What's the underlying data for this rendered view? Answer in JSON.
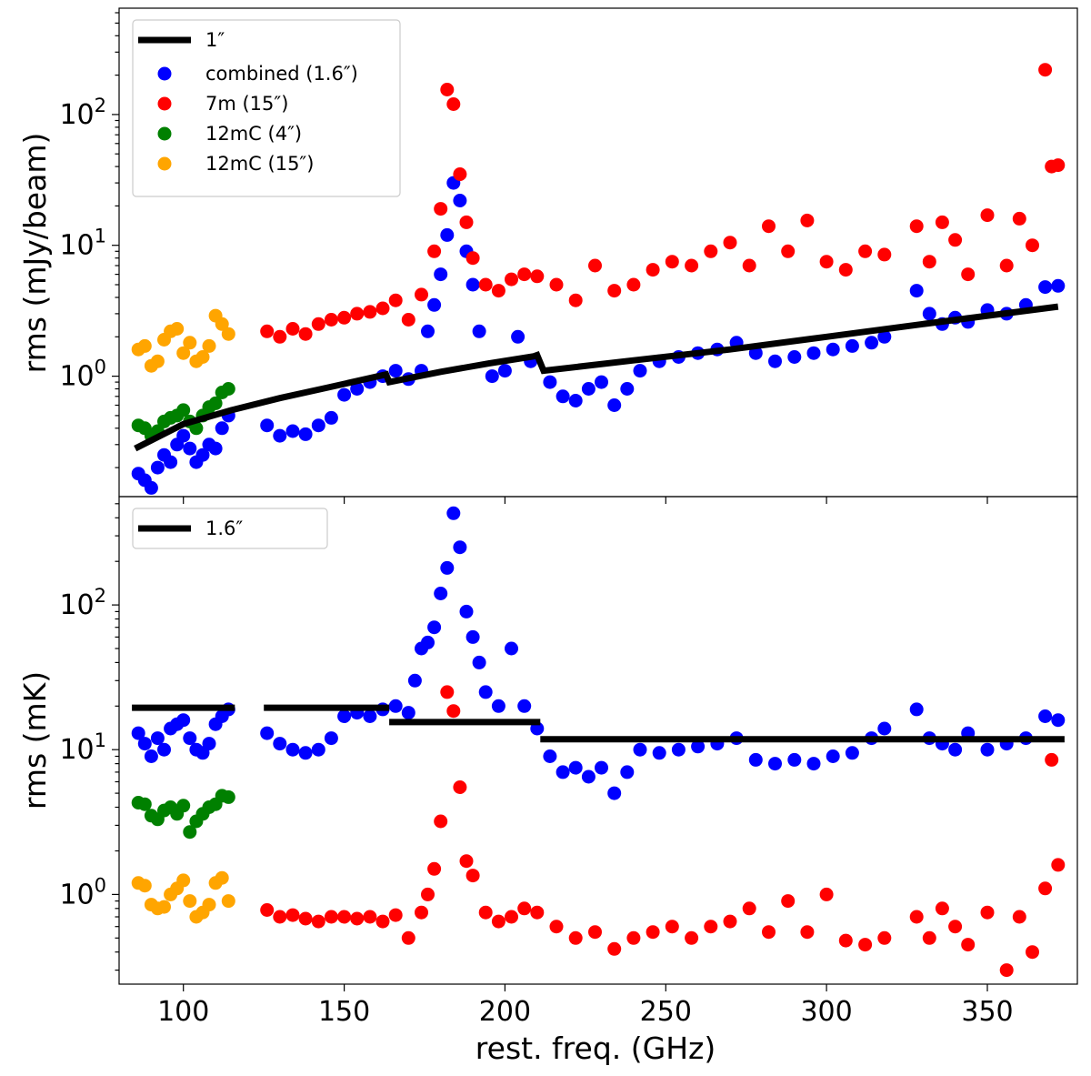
{
  "chart_data": [
    {
      "type": "scatter",
      "panel": "top",
      "ylabel": "rms (mJy/beam)",
      "xlabel": "",
      "yscale": "log",
      "xlim": [
        80,
        378
      ],
      "ylim": [
        0.12,
        650
      ],
      "y_ticks": [
        {
          "value": 1,
          "mantissa": "10",
          "exp": "0"
        },
        {
          "value": 10,
          "mantissa": "10",
          "exp": "1"
        },
        {
          "value": 100,
          "mantissa": "10",
          "exp": "2"
        }
      ],
      "legend_position": "top-left",
      "line": {
        "name": "1″",
        "color": "#000000",
        "x": [
          85,
          100,
          115,
          130,
          145,
          155,
          163,
          164,
          180,
          195,
          209,
          210,
          212,
          240,
          270,
          300,
          330,
          355,
          372
        ],
        "y": [
          0.28,
          0.43,
          0.55,
          0.68,
          0.82,
          0.93,
          1.03,
          0.9,
          1.08,
          1.25,
          1.42,
          1.45,
          1.1,
          1.32,
          1.6,
          2.0,
          2.5,
          3.0,
          3.4
        ]
      },
      "series": [
        {
          "name": "combined (1.6″)",
          "color": "#0000ff",
          "x": [
            86,
            88,
            90,
            92,
            94,
            96,
            98,
            100,
            102,
            104,
            106,
            108,
            110,
            112,
            114,
            126,
            130,
            134,
            138,
            142,
            146,
            150,
            154,
            158,
            162,
            166,
            170,
            174,
            176,
            178,
            180,
            182,
            184,
            186,
            188,
            190,
            192,
            196,
            200,
            204,
            208,
            214,
            218,
            222,
            226,
            230,
            234,
            238,
            242,
            248,
            254,
            260,
            266,
            272,
            278,
            284,
            290,
            296,
            302,
            308,
            314,
            318,
            328,
            332,
            336,
            340,
            344,
            350,
            356,
            362,
            368,
            372
          ],
          "y": [
            0.18,
            0.16,
            0.14,
            0.2,
            0.25,
            0.22,
            0.3,
            0.35,
            0.28,
            0.22,
            0.25,
            0.3,
            0.28,
            0.4,
            0.5,
            0.42,
            0.35,
            0.38,
            0.36,
            0.42,
            0.48,
            0.72,
            0.8,
            0.9,
            1.0,
            1.1,
            0.95,
            1.1,
            2.2,
            3.5,
            6.0,
            12.0,
            30.0,
            22.0,
            9.0,
            5.0,
            2.2,
            1.0,
            1.1,
            2.0,
            1.3,
            0.9,
            0.7,
            0.65,
            0.8,
            0.9,
            0.6,
            0.8,
            1.1,
            1.3,
            1.4,
            1.5,
            1.6,
            1.8,
            1.5,
            1.3,
            1.4,
            1.5,
            1.6,
            1.7,
            1.8,
            2.0,
            4.5,
            3.0,
            2.5,
            2.8,
            2.6,
            3.2,
            3.0,
            3.5,
            4.8,
            4.9
          ]
        },
        {
          "name": "7m (15″)",
          "color": "#ff0000",
          "x": [
            126,
            130,
            134,
            138,
            142,
            146,
            150,
            154,
            158,
            162,
            166,
            170,
            174,
            178,
            180,
            182,
            184,
            186,
            188,
            190,
            194,
            198,
            202,
            206,
            210,
            216,
            222,
            228,
            234,
            240,
            246,
            252,
            258,
            264,
            270,
            276,
            282,
            288,
            294,
            300,
            306,
            312,
            318,
            328,
            332,
            336,
            340,
            344,
            350,
            356,
            360,
            364,
            368,
            370,
            372
          ],
          "y": [
            2.2,
            2.0,
            2.3,
            2.1,
            2.5,
            2.7,
            2.8,
            3.0,
            3.1,
            3.3,
            3.8,
            2.7,
            4.2,
            9.0,
            19.0,
            155.0,
            120.0,
            35.0,
            15.0,
            8.0,
            5.0,
            4.5,
            5.5,
            6.0,
            5.8,
            5.0,
            3.8,
            7.0,
            4.5,
            5.0,
            6.5,
            7.5,
            7.0,
            9.0,
            10.5,
            7.0,
            14.0,
            9.0,
            15.5,
            7.5,
            6.5,
            9.0,
            8.5,
            14.0,
            7.5,
            15.0,
            11.0,
            6.0,
            17.0,
            7.0,
            16.0,
            10.0,
            220.0,
            40.0,
            41.0
          ]
        },
        {
          "name": "12mC (4″)",
          "color": "#008000",
          "x": [
            86,
            88,
            90,
            92,
            94,
            96,
            98,
            100,
            102,
            104,
            106,
            108,
            110,
            112,
            114
          ],
          "y": [
            0.42,
            0.4,
            0.35,
            0.38,
            0.45,
            0.48,
            0.5,
            0.55,
            0.45,
            0.4,
            0.5,
            0.58,
            0.62,
            0.75,
            0.8
          ]
        },
        {
          "name": "12mC (15″)",
          "color": "#ffa500",
          "x": [
            86,
            88,
            90,
            92,
            94,
            96,
            98,
            100,
            102,
            104,
            106,
            108,
            110,
            112,
            114
          ],
          "y": [
            1.6,
            1.7,
            1.2,
            1.3,
            1.9,
            2.2,
            2.3,
            1.5,
            1.8,
            1.3,
            1.4,
            1.7,
            2.9,
            2.5,
            2.1
          ]
        }
      ]
    },
    {
      "type": "scatter",
      "panel": "bottom",
      "ylabel": "rms (mK)",
      "xlabel": "rest. freq. (GHz)",
      "yscale": "log",
      "xlim": [
        80,
        378
      ],
      "ylim": [
        0.24,
        560
      ],
      "x_ticks": [
        100,
        150,
        200,
        250,
        300,
        350
      ],
      "y_ticks": [
        {
          "value": 1,
          "mantissa": "10",
          "exp": "0"
        },
        {
          "value": 10,
          "mantissa": "10",
          "exp": "1"
        },
        {
          "value": 100,
          "mantissa": "10",
          "exp": "2"
        }
      ],
      "legend_position": "top-left",
      "line": {
        "name": "1.6″",
        "color": "#000000",
        "segments": [
          {
            "x": [
              84,
              116
            ],
            "y": [
              19.5,
              19.5
            ]
          },
          {
            "x": [
              125,
              164
            ],
            "y": [
              19.5,
              19.5
            ]
          },
          {
            "x": [
              164,
              211
            ],
            "y": [
              15.5,
              15.5
            ]
          },
          {
            "x": [
              211,
              374
            ],
            "y": [
              11.8,
              11.8
            ]
          }
        ]
      },
      "series": [
        {
          "name": "combined",
          "color": "#0000ff",
          "x": [
            86,
            88,
            90,
            92,
            94,
            96,
            98,
            100,
            102,
            104,
            106,
            108,
            110,
            112,
            114,
            126,
            130,
            134,
            138,
            142,
            146,
            150,
            154,
            158,
            162,
            166,
            170,
            172,
            174,
            176,
            178,
            180,
            182,
            184,
            186,
            188,
            190,
            192,
            194,
            198,
            202,
            206,
            210,
            214,
            218,
            222,
            226,
            230,
            234,
            238,
            242,
            248,
            254,
            260,
            266,
            272,
            278,
            284,
            290,
            296,
            302,
            308,
            314,
            318,
            328,
            332,
            336,
            340,
            344,
            350,
            356,
            362,
            368,
            372
          ],
          "y": [
            13.0,
            11.0,
            9.0,
            12.0,
            10.0,
            14.0,
            15.0,
            16.0,
            12.0,
            10.0,
            9.5,
            11.0,
            15.0,
            17.0,
            19.0,
            13.0,
            11.0,
            10.0,
            9.5,
            10.0,
            12.0,
            17.0,
            18.0,
            17.0,
            19.0,
            20.0,
            18.0,
            30.0,
            50.0,
            55.0,
            70.0,
            120.0,
            180.0,
            430.0,
            250.0,
            90.0,
            60.0,
            40.0,
            25.0,
            20.0,
            50.0,
            20.0,
            14.0,
            9.0,
            7.0,
            7.5,
            6.5,
            7.5,
            5.0,
            7.0,
            10.0,
            9.5,
            10.0,
            10.5,
            11.0,
            12.0,
            8.5,
            8.0,
            8.5,
            8.0,
            9.0,
            9.5,
            12.0,
            14.0,
            19.0,
            12.0,
            11.0,
            10.0,
            13.0,
            10.0,
            11.0,
            12.0,
            17.0,
            16.0
          ]
        },
        {
          "name": "7m",
          "color": "#ff0000",
          "x": [
            126,
            130,
            134,
            138,
            142,
            146,
            150,
            154,
            158,
            162,
            166,
            170,
            174,
            176,
            178,
            180,
            182,
            184,
            186,
            188,
            190,
            194,
            198,
            202,
            206,
            210,
            216,
            222,
            228,
            234,
            240,
            246,
            252,
            258,
            264,
            270,
            276,
            282,
            288,
            294,
            300,
            306,
            312,
            318,
            328,
            332,
            336,
            340,
            344,
            350,
            356,
            360,
            364,
            368,
            370,
            372
          ],
          "y": [
            0.78,
            0.7,
            0.72,
            0.68,
            0.65,
            0.7,
            0.7,
            0.68,
            0.7,
            0.65,
            0.72,
            0.5,
            0.75,
            1.0,
            1.5,
            3.2,
            25.0,
            18.5,
            5.5,
            1.7,
            1.35,
            0.75,
            0.65,
            0.7,
            0.8,
            0.75,
            0.6,
            0.5,
            0.55,
            0.42,
            0.5,
            0.55,
            0.6,
            0.5,
            0.6,
            0.65,
            0.8,
            0.55,
            0.9,
            0.55,
            1.0,
            0.48,
            0.45,
            0.5,
            0.7,
            0.5,
            0.8,
            0.6,
            0.45,
            0.75,
            0.3,
            0.7,
            0.4,
            1.1,
            8.5,
            1.6
          ]
        },
        {
          "name": "12mC (4″)",
          "color": "#008000",
          "x": [
            86,
            88,
            90,
            92,
            94,
            96,
            98,
            100,
            102,
            104,
            106,
            108,
            110,
            112,
            114
          ],
          "y": [
            4.3,
            4.2,
            3.5,
            3.3,
            3.8,
            4.0,
            3.6,
            4.1,
            2.7,
            3.2,
            3.6,
            4.0,
            4.2,
            4.8,
            4.7
          ]
        },
        {
          "name": "12mC (15″)",
          "color": "#ffa500",
          "x": [
            86,
            88,
            90,
            92,
            94,
            96,
            98,
            100,
            102,
            104,
            106,
            108,
            110,
            112,
            114
          ],
          "y": [
            1.2,
            1.15,
            0.85,
            0.8,
            0.82,
            1.0,
            1.1,
            1.25,
            0.9,
            0.7,
            0.75,
            0.85,
            1.2,
            1.3,
            0.9
          ]
        }
      ]
    }
  ]
}
